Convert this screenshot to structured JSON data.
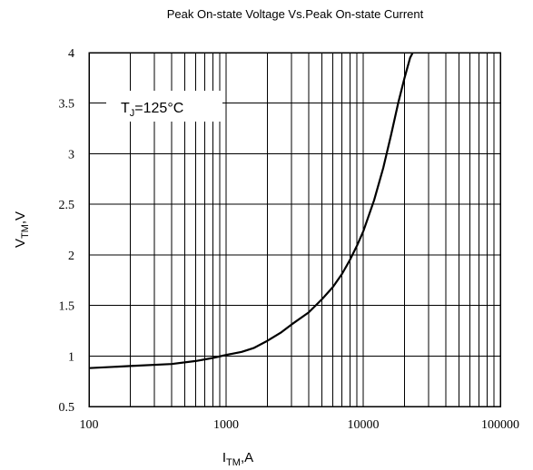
{
  "chart_data": {
    "type": "line",
    "title": "Peak On-state Voltage Vs.Peak On-state Current",
    "xlabel": {
      "main": "I",
      "sub": "TM",
      "tail": ",A"
    },
    "ylabel": {
      "main": "V",
      "sub": "TM",
      "tail": ",V"
    },
    "xscale": "log",
    "xlim": [
      100,
      100000
    ],
    "ylim": [
      0.5,
      4
    ],
    "grid": true,
    "x_tick_labels": [
      "100",
      "1000",
      "10000",
      "100000"
    ],
    "y_tick_labels": [
      "0.5",
      "1",
      "1.5",
      "2",
      "2.5",
      "3",
      "3.5",
      "4"
    ],
    "annotation": {
      "main": "T",
      "sub": "J",
      "tail": "=125°C"
    },
    "series": [
      {
        "x": [
          100,
          200,
          400,
          600,
          800,
          1000,
          1300,
          1600,
          2000,
          2500,
          3000,
          4000,
          5000,
          6000,
          7000,
          8000,
          9000,
          10000,
          12000,
          14000,
          16000,
          18000,
          20000,
          22000,
          23000
        ],
        "y": [
          0.88,
          0.9,
          0.92,
          0.95,
          0.98,
          1.01,
          1.04,
          1.08,
          1.15,
          1.23,
          1.31,
          1.43,
          1.56,
          1.68,
          1.81,
          1.95,
          2.09,
          2.23,
          2.54,
          2.86,
          3.19,
          3.5,
          3.75,
          3.95,
          4.0
        ]
      }
    ]
  }
}
